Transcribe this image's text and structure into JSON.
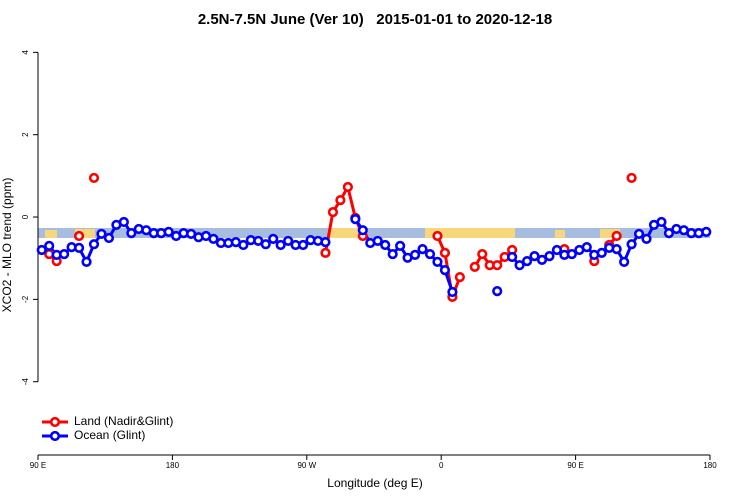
{
  "chart_data": {
    "type": "line",
    "title": "2.5N-7.5N June (Ver 10)   2015-01-01 to 2020-12-18",
    "x_label": "Longitude (deg E)",
    "y_label": "XCO2 - MLO trend (ppm)",
    "xlim": [
      90,
      540
    ],
    "ylim": [
      -5.78,
      4.3
    ],
    "xticks": [
      {
        "value": 90,
        "label": "90 E"
      },
      180,
      {
        "value": 270,
        "label": "90 W"
      },
      {
        "value": 360,
        "label": "0"
      },
      {
        "value": 450,
        "label": "90 E"
      },
      {
        "value": 540,
        "label": "180"
      }
    ],
    "yticks": [
      -4,
      -2,
      0,
      2,
      4
    ],
    "legend": "bottom-left",
    "x": [
      92.5,
      97.5,
      102.5,
      107.5,
      112.5,
      117.5,
      122.5,
      127.5,
      132.5,
      137.5,
      142.5,
      147.5,
      152.5,
      157.5,
      162.5,
      167.5,
      172.5,
      177.5,
      182.5,
      187.5,
      192.5,
      197.5,
      202.5,
      207.5,
      212.5,
      217.5,
      222.5,
      227.5,
      232.5,
      237.5,
      242.5,
      247.5,
      252.5,
      257.5,
      262.5,
      267.5,
      272.5,
      277.5,
      282.5,
      287.5,
      292.5,
      297.5,
      302.5,
      307.5,
      312.5,
      317.5,
      322.5,
      327.5,
      332.5,
      337.5,
      342.5,
      347.5,
      352.5,
      357.5,
      362.5,
      367.5,
      372.5,
      377.5,
      382.5,
      387.5,
      392.5,
      397.5,
      402.5,
      407.5,
      412.5,
      417.5,
      422.5,
      427.5,
      432.5,
      437.5,
      442.5,
      447.5,
      452.5,
      457.5,
      462.5,
      467.5,
      472.5,
      477.5,
      482.5,
      487.5,
      492.5,
      497.5,
      502.5,
      507.5,
      512.5,
      517.5,
      522.5,
      527.5,
      532.5,
      537.5
    ],
    "series": [
      {
        "name": "Land (Nadir&Glint)",
        "color": "#ff0000",
        "values": [
          null,
          -0.9,
          -1.07,
          null,
          null,
          -0.46,
          null,
          0.95,
          null,
          null,
          null,
          null,
          null,
          null,
          null,
          null,
          null,
          null,
          null,
          null,
          null,
          null,
          null,
          null,
          null,
          null,
          null,
          null,
          null,
          null,
          null,
          null,
          null,
          null,
          null,
          null,
          null,
          null,
          -0.87,
          0.12,
          0.41,
          0.73,
          -0.02,
          -0.46,
          null,
          null,
          null,
          null,
          null,
          null,
          null,
          null,
          null,
          -0.46,
          -0.87,
          -1.94,
          -1.46,
          null,
          -1.21,
          -0.9,
          -1.17,
          -1.17,
          -0.97,
          -0.8,
          null,
          null,
          null,
          null,
          null,
          null,
          -0.78,
          null,
          null,
          null,
          -1.07,
          null,
          -0.68,
          -0.46,
          null,
          0.95,
          null,
          null,
          null,
          null,
          null,
          null,
          null,
          null,
          null,
          null
        ]
      },
      {
        "name": "Ocean (Glint)",
        "color": "#0000ff",
        "values": [
          -0.8,
          -0.7,
          -0.92,
          -0.9,
          -0.73,
          -0.75,
          -1.09,
          -0.66,
          -0.41,
          -0.51,
          -0.19,
          -0.12,
          -0.39,
          -0.29,
          -0.32,
          -0.39,
          -0.39,
          -0.36,
          -0.46,
          -0.39,
          -0.41,
          -0.49,
          -0.46,
          -0.53,
          -0.63,
          -0.63,
          -0.61,
          -0.68,
          -0.56,
          -0.58,
          -0.66,
          -0.53,
          -0.68,
          -0.58,
          -0.68,
          -0.68,
          -0.56,
          -0.58,
          -0.61,
          null,
          null,
          null,
          -0.05,
          -0.32,
          -0.63,
          -0.58,
          -0.68,
          -0.9,
          -0.7,
          -0.99,
          -0.92,
          -0.78,
          -0.9,
          -1.09,
          -1.29,
          -1.82,
          null,
          null,
          null,
          null,
          null,
          -1.8,
          null,
          -0.97,
          -1.17,
          -1.07,
          -0.95,
          -1.04,
          -0.95,
          -0.8,
          -0.92,
          -0.9,
          -0.8,
          -0.73,
          -0.92,
          -0.87,
          -0.75,
          -0.78,
          -1.09,
          -0.66,
          -0.41,
          -0.53,
          -0.19,
          -0.12,
          -0.39,
          -0.29,
          -0.32,
          -0.39,
          -0.39,
          -0.36
        ]
      }
    ]
  }
}
